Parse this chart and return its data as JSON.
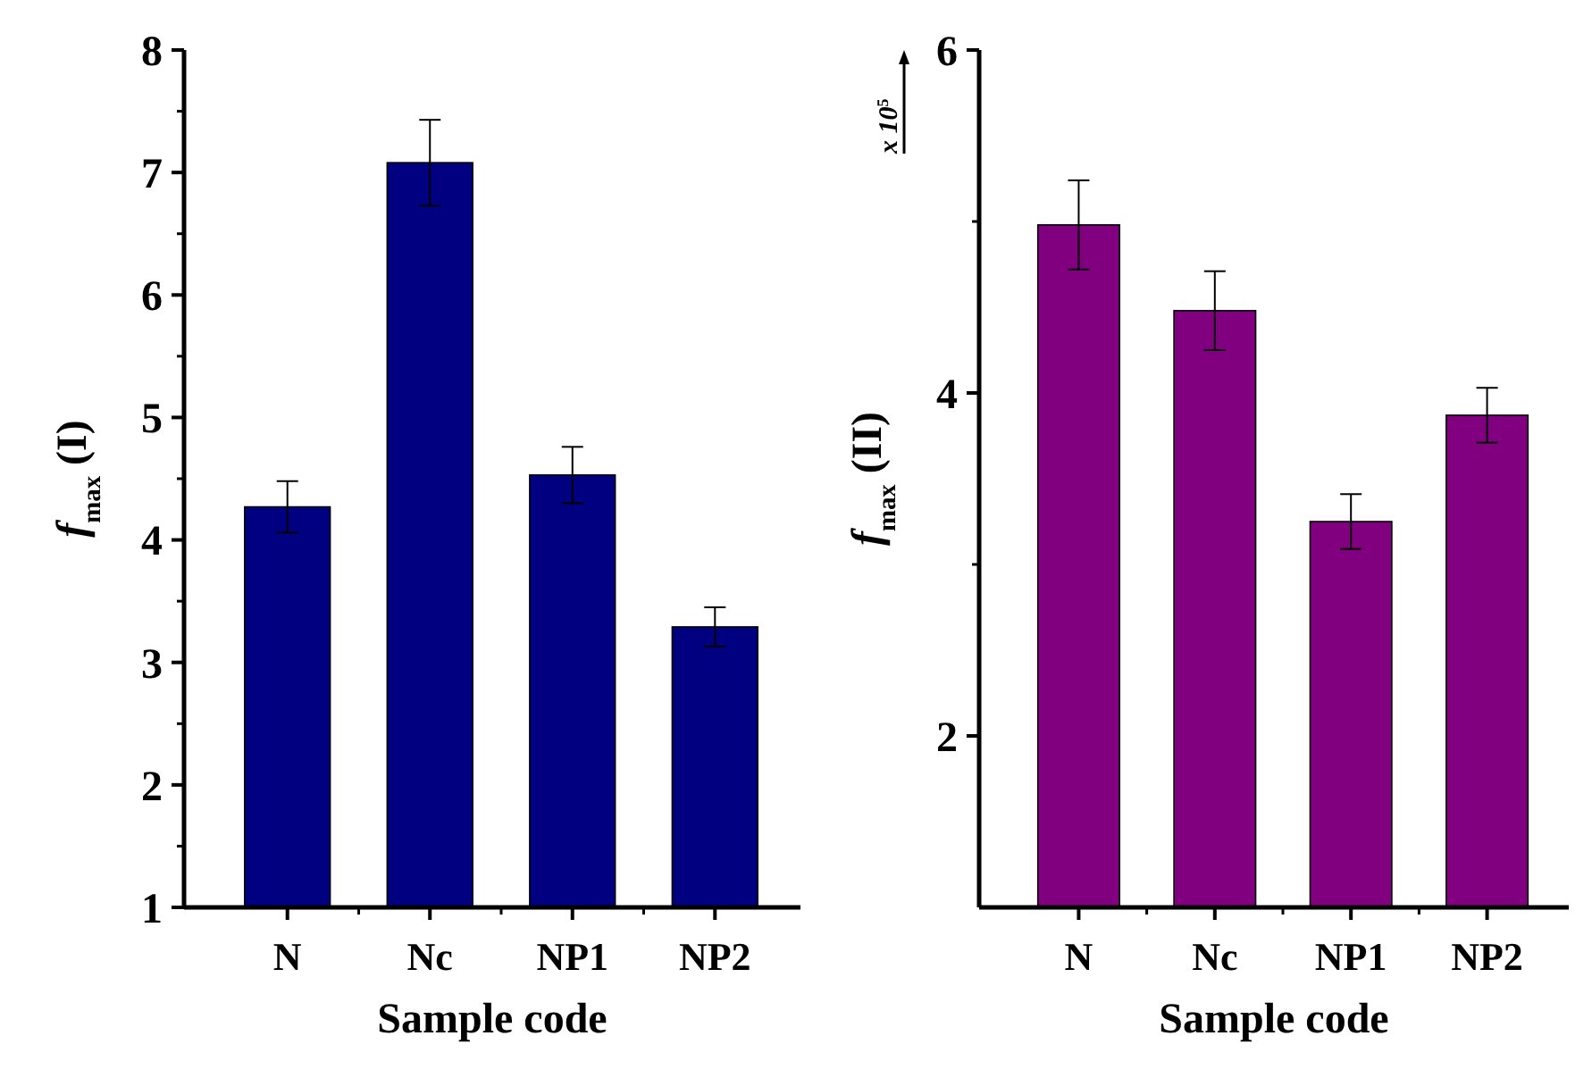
{
  "chart_data": [
    {
      "type": "bar",
      "categories": [
        "N",
        "Nc",
        "NP1",
        "NP2"
      ],
      "xlabel": "Sample code",
      "ylabel": "f$_{max}$ (I)",
      "values": [
        4.27,
        7.08,
        4.53,
        3.29
      ],
      "errors": [
        0.21,
        0.35,
        0.23,
        0.16
      ],
      "color": "#000080",
      "ylim": [
        1,
        8
      ],
      "yticks": [
        1,
        2,
        3,
        4,
        5,
        6,
        7,
        8
      ],
      "grid": false
    },
    {
      "type": "bar",
      "categories": [
        "N",
        "Nc",
        "NP1",
        "NP2"
      ],
      "xlabel": "Sample code",
      "ylabel": "f$_{max}$ (II)",
      "values": [
        4.98,
        4.48,
        3.25,
        3.87
      ],
      "errors": [
        0.26,
        0.23,
        0.16,
        0.16
      ],
      "color": "#800080",
      "ylim": [
        1,
        6
      ],
      "yticks": [
        2,
        4,
        6
      ],
      "grid": false,
      "annotations": [
        "x 10$^{5}$"
      ]
    }
  ]
}
